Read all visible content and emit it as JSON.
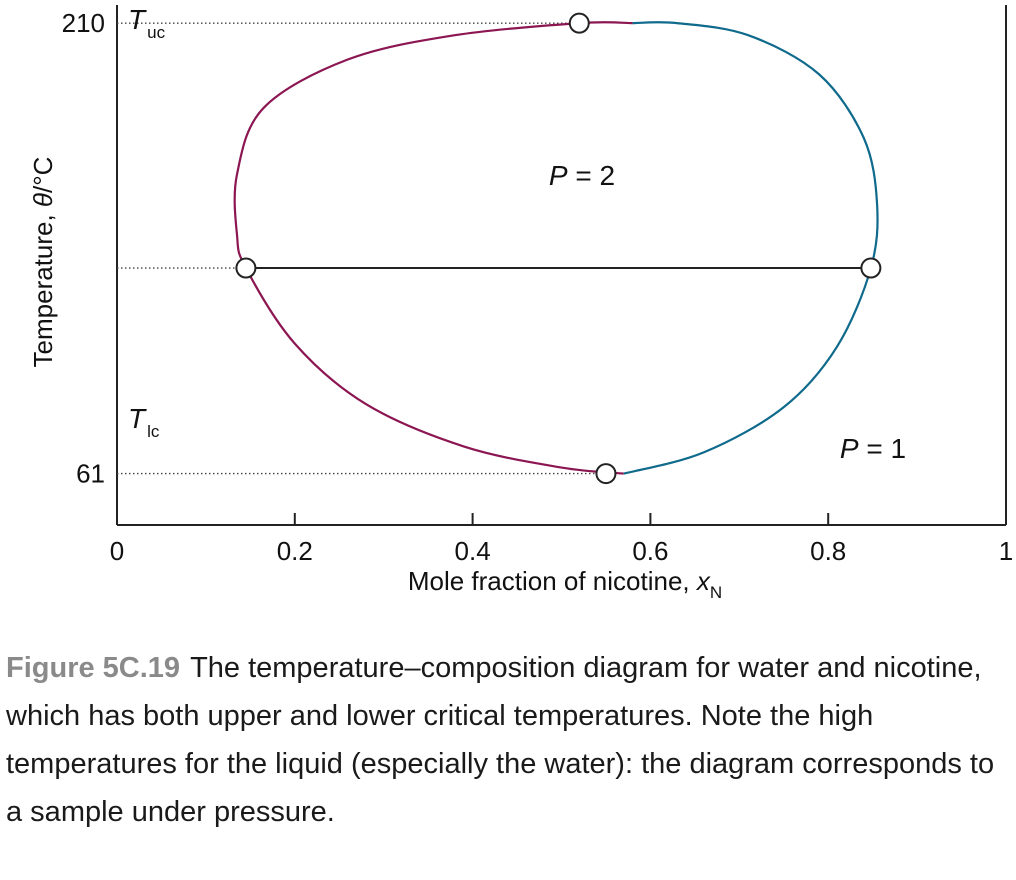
{
  "chart_data": {
    "type": "line",
    "title": "",
    "xlabel": "Mole fraction of nicotine, ",
    "xlabel_symbol": "x",
    "xlabel_sub": "N",
    "ylabel": "Temperature, ",
    "ylabel_symbol": "θ",
    "ylabel_unit": "/°C",
    "xlim": [
      0,
      1
    ],
    "ylim": [
      44,
      216
    ],
    "x_ticks": [
      0,
      0.2,
      0.4,
      0.6,
      0.8,
      1
    ],
    "x_tick_labels": [
      "0",
      "0.2",
      "0.4",
      "0.6",
      "0.8",
      "1"
    ],
    "y_ticks": [
      61,
      210
    ],
    "y_tick_labels": [
      "61",
      "210"
    ],
    "grid": false,
    "critical_points": [
      {
        "symbol": "T",
        "sub": "uc",
        "temperature": 210,
        "x": 0.52
      },
      {
        "symbol": "T",
        "sub": "lc",
        "temperature": 61,
        "x": 0.55
      }
    ],
    "tie_line": {
      "temperature": 129,
      "x_left": 0.145,
      "x_right": 0.848
    },
    "series": [
      {
        "color": "#8b1652",
        "points": [
          [
            0.58,
            210
          ],
          [
            0.52,
            210
          ],
          [
            0.38,
            206
          ],
          [
            0.26,
            198
          ],
          [
            0.165,
            182
          ],
          [
            0.135,
            160
          ],
          [
            0.135,
            140
          ],
          [
            0.145,
            129
          ],
          [
            0.2,
            104
          ],
          [
            0.28,
            84
          ],
          [
            0.39,
            70
          ],
          [
            0.5,
            63
          ],
          [
            0.57,
            61
          ]
        ]
      },
      {
        "color": "#0f6a8c",
        "points": [
          [
            0.57,
            61
          ],
          [
            0.66,
            68
          ],
          [
            0.75,
            83
          ],
          [
            0.81,
            103
          ],
          [
            0.848,
            129
          ],
          [
            0.855,
            150
          ],
          [
            0.84,
            172
          ],
          [
            0.79,
            193
          ],
          [
            0.71,
            206
          ],
          [
            0.63,
            210
          ],
          [
            0.58,
            210
          ]
        ]
      }
    ],
    "markers": [
      [
        0.52,
        210
      ],
      [
        0.145,
        129
      ],
      [
        0.848,
        129
      ],
      [
        0.55,
        61
      ]
    ],
    "region_labels": [
      {
        "symbol": "P",
        "text": " = 2",
        "x": 0.52,
        "y": 172
      },
      {
        "symbol": "P",
        "text": " = 1",
        "x": 0.8,
        "y": 61
      }
    ]
  },
  "caption": {
    "label": "Figure 5C.19",
    "text": "The temperature–composition diagram for water and nicotine, which has both upper and lower critical temperatures. Note the high temperatures for the liquid (especially the water): the diagram corresponds to a sample under pressure."
  }
}
